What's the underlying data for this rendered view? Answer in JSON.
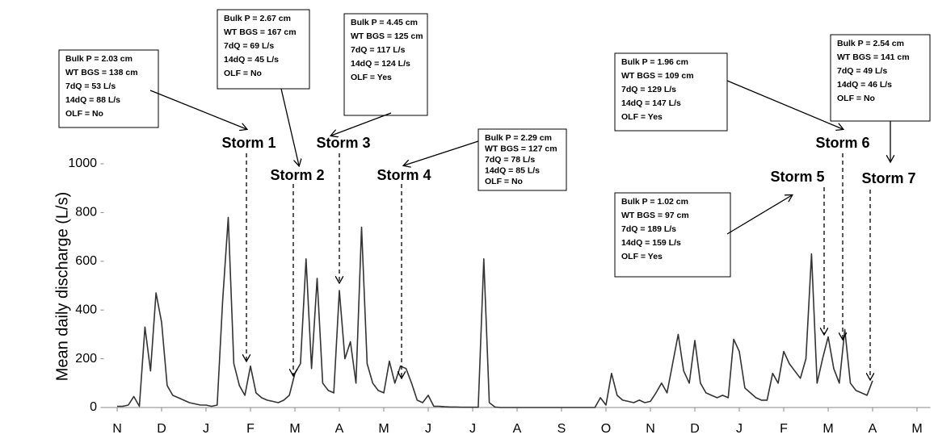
{
  "chart_data": {
    "type": "line",
    "ylabel": "Mean daily discharge (L/s)",
    "xlim": [
      -0.3,
      18.3
    ],
    "xticks": [
      {
        "value": 0,
        "label": "N"
      },
      {
        "value": 1,
        "label": "D"
      },
      {
        "value": 2,
        "label": "J"
      },
      {
        "value": 3,
        "label": "F"
      },
      {
        "value": 4,
        "label": "M"
      },
      {
        "value": 5,
        "label": "A"
      },
      {
        "value": 6,
        "label": "M"
      },
      {
        "value": 7,
        "label": "J"
      },
      {
        "value": 8,
        "label": "J"
      },
      {
        "value": 9,
        "label": "A"
      },
      {
        "value": 10,
        "label": "S"
      },
      {
        "value": 11,
        "label": "O"
      },
      {
        "value": 12,
        "label": "N"
      },
      {
        "value": 13,
        "label": "D"
      },
      {
        "value": 14,
        "label": "J"
      },
      {
        "value": 15,
        "label": "F"
      },
      {
        "value": 16,
        "label": "M"
      },
      {
        "value": 17,
        "label": "A"
      },
      {
        "value": 18,
        "label": "M"
      }
    ],
    "ylim": [
      0,
      1000
    ],
    "yticks": [
      0,
      200,
      400,
      600,
      800,
      1000
    ],
    "color": "#333333",
    "x": [
      0,
      0.125,
      0.25,
      0.375,
      0.5,
      0.625,
      0.75,
      0.875,
      1,
      1.125,
      1.25,
      1.375,
      1.5,
      1.625,
      1.75,
      1.875,
      2,
      2.125,
      2.25,
      2.375,
      2.5,
      2.625,
      2.75,
      2.875,
      3,
      3.125,
      3.25,
      3.375,
      3.5,
      3.625,
      3.75,
      3.875,
      4,
      4.125,
      4.25,
      4.375,
      4.5,
      4.625,
      4.75,
      4.875,
      5,
      5.125,
      5.25,
      5.375,
      5.5,
      5.625,
      5.75,
      5.875,
      6,
      6.125,
      6.25,
      6.375,
      6.5,
      6.625,
      6.75,
      6.875,
      7,
      7.125,
      7.25,
      7.375,
      7.5,
      7.625,
      7.75,
      7.875,
      8,
      8.125,
      8.25,
      8.375,
      8.5,
      8.625,
      8.75,
      8.875,
      9,
      9.125,
      9.25,
      9.375,
      9.5,
      9.625,
      9.75,
      9.875,
      10,
      10.125,
      10.25,
      10.375,
      10.5,
      10.625,
      10.75,
      10.875,
      11,
      11.125,
      11.25,
      11.375,
      11.5,
      11.625,
      11.75,
      11.875,
      12,
      12.125,
      12.25,
      12.375,
      12.5,
      12.625,
      12.75,
      12.875,
      13,
      13.125,
      13.25,
      13.375,
      13.5,
      13.625,
      13.75,
      13.875,
      14,
      14.125,
      14.25,
      14.375,
      14.5,
      14.625,
      14.75,
      14.875,
      15,
      15.125,
      15.25,
      15.375,
      15.5,
      15.625,
      15.75,
      15.875,
      16,
      16.125,
      16.25,
      16.375,
      16.5,
      16.625,
      16.75,
      16.875,
      17
    ],
    "values": [
      5,
      5,
      10,
      45,
      5,
      330,
      150,
      470,
      350,
      90,
      50,
      40,
      30,
      20,
      15,
      10,
      10,
      5,
      10,
      440,
      780,
      180,
      90,
      50,
      170,
      60,
      40,
      30,
      25,
      20,
      30,
      50,
      140,
      180,
      610,
      160,
      530,
      100,
      70,
      60,
      480,
      200,
      270,
      100,
      740,
      180,
      100,
      70,
      60,
      190,
      100,
      170,
      160,
      100,
      30,
      20,
      50,
      5,
      5,
      3,
      2,
      2,
      1,
      1,
      1,
      1,
      610,
      20,
      2,
      0,
      0,
      0,
      0,
      0,
      0,
      0,
      0,
      0,
      0,
      0,
      0,
      0,
      0,
      0,
      0,
      0,
      0,
      40,
      10,
      140,
      50,
      30,
      25,
      20,
      30,
      20,
      25,
      60,
      100,
      60,
      180,
      300,
      150,
      100,
      275,
      100,
      60,
      50,
      40,
      50,
      40,
      280,
      230,
      80,
      60,
      40,
      30,
      30,
      140,
      100,
      230,
      180,
      150,
      120,
      200,
      630,
      100,
      200,
      290,
      160,
      100,
      320,
      100,
      70,
      60,
      50,
      110
    ],
    "annotations": [
      {
        "label": "Storm 1",
        "lines": [
          "Bulk P = 2.03 cm",
          "WT BGS = 138 cm",
          "7dQ = 53 L/s",
          "14dQ = 88 L/s",
          "OLF = No"
        ]
      },
      {
        "label": "Storm 2",
        "lines": [
          "Bulk P = 2.67 cm",
          "WT BGS = 167 cm",
          "7dQ = 69 L/s",
          "14dQ = 45 L/s",
          "OLF = No"
        ]
      },
      {
        "label": "Storm 3",
        "lines": [
          "Bulk P = 4.45 cm",
          "WT BGS = 125 cm",
          "7dQ = 117 L/s",
          "14dQ = 124 L/s",
          "OLF = Yes"
        ]
      },
      {
        "label": "Storm 4",
        "lines": [
          "Bulk P = 2.29 cm",
          "WT BGS = 127 cm",
          "7dQ = 78 L/s",
          "14dQ = 85 L/s",
          "OLF = No"
        ]
      },
      {
        "label": "Storm 5",
        "lines": [
          "Bulk P = 1.02 cm",
          "WT BGS = 97 cm",
          "7dQ = 189 L/s",
          "14dQ = 159 L/s",
          "OLF = Yes"
        ]
      },
      {
        "label": "Storm 6",
        "lines": [
          "Bulk P = 1.96 cm",
          "WT BGS = 109 cm",
          "7dQ = 129 L/s",
          "14dQ = 147 L/s",
          "OLF = Yes"
        ]
      },
      {
        "label": "Storm 7",
        "lines": [
          "Bulk P = 2.54 cm",
          "WT BGS = 141 cm",
          "7dQ = 49 L/s",
          "14dQ = 46 L/s",
          "OLF = No"
        ]
      }
    ]
  }
}
